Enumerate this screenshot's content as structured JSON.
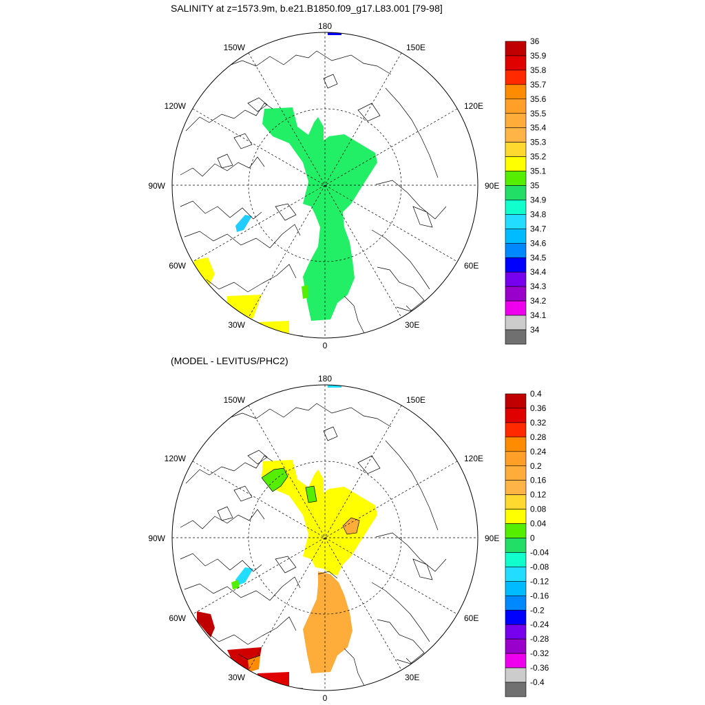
{
  "top_panel": {
    "title": "SALINITY at z=1573.9m, b.e21.B1850.f09_g17.L83.001 [79-98]",
    "lon_labels": [
      "180",
      "150E",
      "120E",
      "90E",
      "60E",
      "30E",
      "0",
      "30W",
      "60W",
      "90W",
      "120W",
      "150W"
    ],
    "colorbar": {
      "labels": [
        "36",
        "35.9",
        "35.8",
        "35.7",
        "35.6",
        "35.5",
        "35.4",
        "35.3",
        "35.2",
        "35.1",
        "35",
        "34.9",
        "34.8",
        "34.7",
        "34.6",
        "34.5",
        "34.4",
        "34.3",
        "34.2",
        "34.1",
        "34"
      ],
      "colors": [
        "#c00000",
        "#e00000",
        "#ff2a00",
        "#ff8c00",
        "#ff9f28",
        "#ffad3a",
        "#ffb445",
        "#ffd830",
        "#ffff00",
        "#55ee00",
        "#22dd66",
        "#11ffcc",
        "#22ddff",
        "#00bbff",
        "#0088ff",
        "#0000ff",
        "#7700ee",
        "#9900cc",
        "#ee00ee",
        "#cccccc",
        "#707070"
      ]
    },
    "field_colors": {
      "main": "#22ee66",
      "cyan_patch": "#22ccff",
      "yellow": "#ffff00",
      "green_spot": "#55ee00"
    }
  },
  "bottom_panel": {
    "title": "(MODEL - LEVITUS/PHC2)",
    "lon_labels": [
      "180",
      "150E",
      "120E",
      "90E",
      "60E",
      "30E",
      "0",
      "30W",
      "60W",
      "90W",
      "120W",
      "150W"
    ],
    "colorbar": {
      "labels": [
        "0.4",
        "0.36",
        "0.32",
        "0.28",
        "0.24",
        "0.2",
        "0.16",
        "0.12",
        "0.08",
        "0.04",
        "0",
        "-0.04",
        "-0.08",
        "-0.12",
        "-0.16",
        "-0.2",
        "-0.24",
        "-0.28",
        "-0.32",
        "-0.36",
        "-0.4"
      ],
      "colors": [
        "#c00000",
        "#e00000",
        "#ff2a00",
        "#ff8c00",
        "#ff9f28",
        "#ffad3a",
        "#ffb445",
        "#ffd830",
        "#ffff00",
        "#55ee00",
        "#22dd66",
        "#11ffcc",
        "#22ddff",
        "#00bbff",
        "#0088ff",
        "#0000ff",
        "#7700ee",
        "#9900cc",
        "#ee00ee",
        "#cccccc",
        "#707070"
      ]
    },
    "field_colors": {
      "yellow": "#ffff00",
      "orange": "#ffad3a",
      "green": "#55ee00",
      "cyan": "#22ddff",
      "red": "#d00000"
    }
  }
}
